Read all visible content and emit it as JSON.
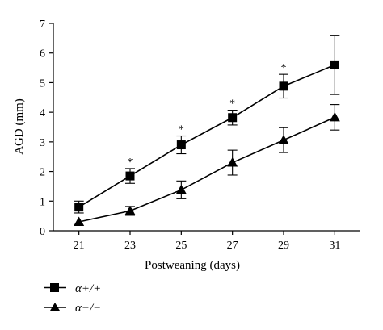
{
  "chart_data": {
    "type": "line",
    "xlabel": "Postweaning (days)",
    "ylabel": "AGD (mm)",
    "x": [
      21,
      23,
      25,
      27,
      29,
      31
    ],
    "xticks": [
      "21",
      "23",
      "25",
      "27",
      "29",
      "31"
    ],
    "xlim": [
      20,
      32
    ],
    "ylim": [
      0,
      7
    ],
    "yticks": [
      "0",
      "1",
      "2",
      "3",
      "4",
      "5",
      "6",
      "7"
    ],
    "grid": false,
    "legend_position": "bottom-left",
    "series": [
      {
        "name": "α+/+",
        "marker": "square",
        "values": [
          0.8,
          1.85,
          2.9,
          3.82,
          4.88,
          5.6
        ],
        "errors": [
          0.2,
          0.25,
          0.3,
          0.25,
          0.4,
          1.0
        ]
      },
      {
        "name": "α−/−",
        "marker": "triangle",
        "values": [
          0.3,
          0.67,
          1.38,
          2.3,
          3.06,
          3.83
        ],
        "errors": [
          0.0,
          0.15,
          0.3,
          0.42,
          0.42,
          0.43
        ]
      }
    ],
    "annotations": [
      {
        "x": 23,
        "text": "*"
      },
      {
        "x": 25,
        "text": "*"
      },
      {
        "x": 27,
        "text": "*"
      },
      {
        "x": 29,
        "text": "*"
      }
    ]
  }
}
